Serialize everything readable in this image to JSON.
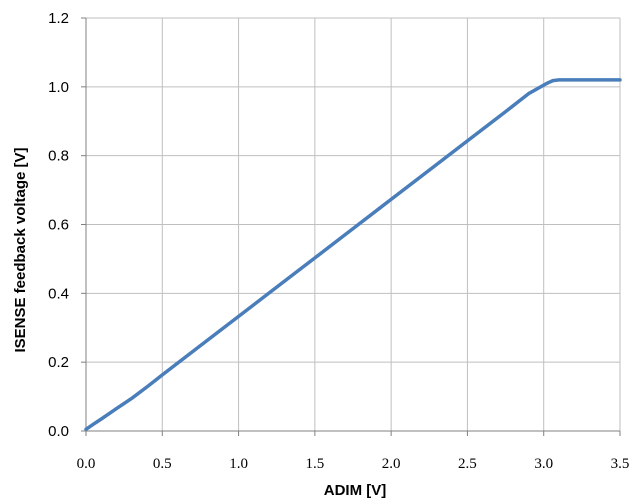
{
  "chart_data": {
    "type": "line",
    "title": "",
    "xlabel": "ADIM [V]",
    "ylabel": "ISENSE feedback voltage [V]",
    "xlim": [
      0,
      3.5
    ],
    "ylim": [
      0,
      1.2
    ],
    "grid": true,
    "x_ticks": [
      "0.0",
      "0.5",
      "1.0",
      "1.5",
      "2.0",
      "2.5",
      "3.0",
      "3.5"
    ],
    "y_ticks": [
      "0.0",
      "0.2",
      "0.4",
      "0.6",
      "0.8",
      "1.0",
      "1.2"
    ],
    "line_color": "#4a7ebb",
    "series": [
      {
        "name": "",
        "x": [
          0.0,
          0.05,
          0.1,
          0.2,
          0.3,
          0.4,
          0.5,
          0.75,
          1.0,
          1.25,
          1.5,
          1.75,
          2.0,
          2.25,
          2.5,
          2.75,
          2.9,
          3.0,
          3.03,
          3.06,
          3.1,
          3.5
        ],
        "y": [
          0.005,
          0.02,
          0.035,
          0.065,
          0.095,
          0.128,
          0.163,
          0.248,
          0.333,
          0.418,
          0.503,
          0.588,
          0.673,
          0.758,
          0.843,
          0.928,
          0.98,
          1.005,
          1.012,
          1.018,
          1.02,
          1.02
        ]
      }
    ]
  }
}
